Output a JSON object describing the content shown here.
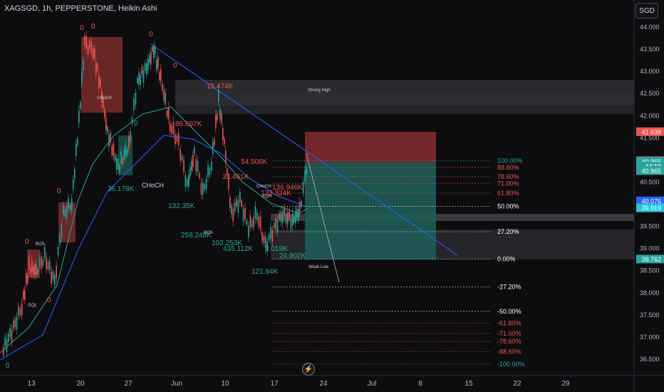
{
  "header": {
    "title": "XAGSGD, 1h, PEPPERSTONE, Heikin Ashi",
    "currency_button": "SGD"
  },
  "icons": {
    "fast_nav": "lightning-icon"
  },
  "colors": {
    "background": "#0d0d0f",
    "bull": "#26a69a",
    "bear": "#ef5350",
    "trendline": "#2962ff",
    "fib": "#26a69a",
    "fib_red": "#ef5350"
  },
  "chart_data": {
    "type": "candlestick",
    "title": "XAGSGD, 1h, PEPPERSTONE, Heikin Ashi",
    "ylim": [
      36.3,
      44.15
    ],
    "x_ticks": [
      "13",
      "20",
      "27",
      "Jun",
      "10",
      "17",
      "24",
      "Jul",
      "8",
      "15",
      "22",
      "29"
    ],
    "y_ticks": [
      "44.000",
      "43.500",
      "43.000",
      "42.500",
      "42.000",
      "41.500",
      "41.000",
      "40.500",
      "40.000",
      "39.500",
      "39.000",
      "38.500",
      "38.000",
      "37.500",
      "37.000",
      "36.500"
    ],
    "price_tags": [
      {
        "label": "41.638",
        "value": 41.638,
        "color": "#ef5350"
      },
      {
        "label": "40.983",
        "value": 40.983,
        "color": "#ef5350"
      },
      {
        "label": "40.969",
        "value": 40.969,
        "color": "#787b86"
      },
      {
        "label": "40.965",
        "value": 40.965,
        "color": "#26a69a"
      },
      {
        "label": "44:19",
        "value": 40.86,
        "color": "#26a69a"
      },
      {
        "label": "40.965",
        "value": 40.76,
        "color": "#26a69a"
      },
      {
        "label": "40.076",
        "value": 40.076,
        "color": "#2962ff"
      },
      {
        "label": "39.919",
        "value": 39.919,
        "color": "#26c6da"
      },
      {
        "label": "38.762",
        "value": 38.762,
        "color": "#26a69a"
      }
    ],
    "fib_levels": [
      {
        "label": "100.00%",
        "value": 40.98,
        "color": "#26a69a"
      },
      {
        "label": "88.60%",
        "value": 40.83,
        "color": "#ef5350"
      },
      {
        "label": "78.60%",
        "value": 40.62,
        "color": "#ef5350"
      },
      {
        "label": "71.00%",
        "value": 40.47,
        "color": "#ef5350"
      },
      {
        "label": "61.80%",
        "value": 40.25,
        "color": "#ef5350"
      },
      {
        "label": "50.00%",
        "value": 39.95,
        "color": "#ffffff"
      },
      {
        "label": "27.20%",
        "value": 39.38,
        "color": "#ffffff"
      },
      {
        "label": "0.00%",
        "value": 38.76,
        "color": "#ffffff"
      },
      {
        "label": "-27.20%",
        "value": 38.13,
        "color": "#ffffff"
      },
      {
        "label": "-50.00%",
        "value": 37.58,
        "color": "#ffffff"
      },
      {
        "label": "-61.80%",
        "value": 37.31,
        "color": "#ef5350"
      },
      {
        "label": "-71.00%",
        "value": 37.08,
        "color": "#ef5350"
      },
      {
        "label": "-78.60%",
        "value": 36.9,
        "color": "#ef5350"
      },
      {
        "label": "-88.60%",
        "value": 36.67,
        "color": "#ef5350"
      },
      {
        "label": "-100.00%",
        "value": 36.39,
        "color": "#26a69a"
      }
    ],
    "volume_labels": [
      {
        "text": "15.474K",
        "color": "#ef5350"
      },
      {
        "text": "86.697K",
        "color": "#ef5350"
      },
      {
        "text": "54.506K",
        "color": "#ef5350"
      },
      {
        "text": "33.461K",
        "color": "#ef5350"
      },
      {
        "text": "136.946K",
        "color": "#ef5350"
      },
      {
        "text": "133.324K",
        "color": "#ef5350"
      },
      {
        "text": "36.178K",
        "color": "#26a69a"
      },
      {
        "text": "132.35K",
        "color": "#26a69a"
      },
      {
        "text": "258.248K",
        "color": "#26a69a"
      },
      {
        "text": "102.253K",
        "color": "#26a69a"
      },
      {
        "text": "435.112K",
        "color": "#26a69a"
      },
      {
        "text": "3.019K",
        "color": "#26a69a"
      },
      {
        "text": "24.902K",
        "color": "#26a69a"
      },
      {
        "text": "121.94K",
        "color": "#26a69a"
      }
    ],
    "annotations": [
      "Strong High",
      "Weak Low",
      "CHoCH",
      "BOS",
      "EQL",
      "EQH"
    ],
    "zeros": [
      "0",
      "0",
      "0",
      "0",
      "0",
      "0",
      "0",
      "0",
      "0"
    ]
  }
}
